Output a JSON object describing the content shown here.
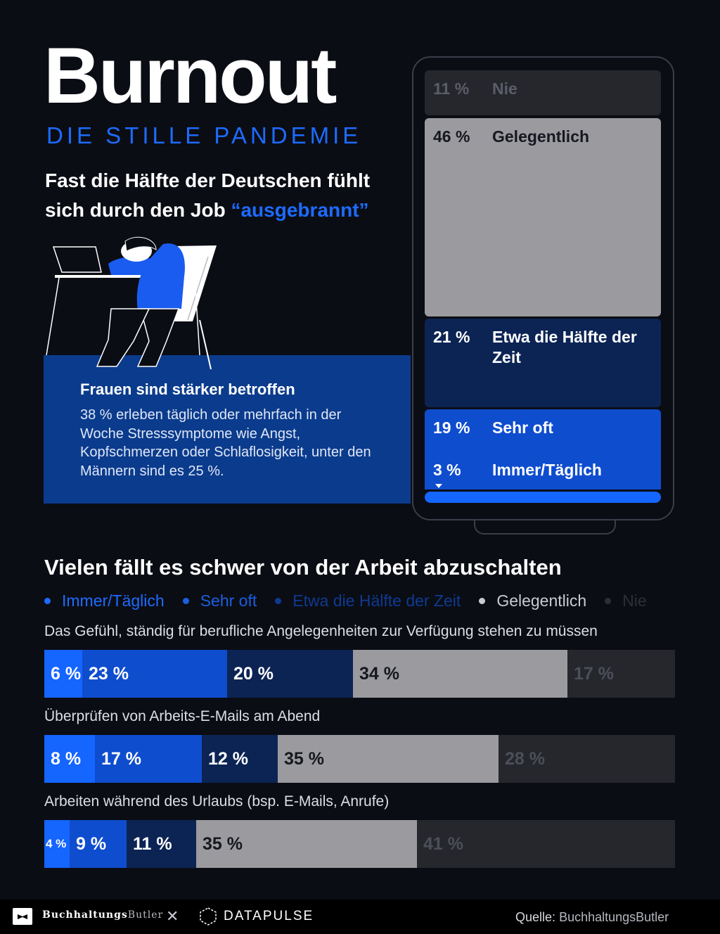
{
  "header": {
    "title": "Burnout",
    "subtitle": "DIE STILLE PANDEMIE",
    "headline_part1": "Fast die Hälfte der Deutschen fühlt sich durch den Job ",
    "headline_highlight": "“ausgebrannt”"
  },
  "info_box": {
    "title": "Frauen sind stärker betroffen",
    "text": "38 % erleben täglich oder mehrfach in der Woche Stresssymptome wie Angst, Kopfschmerzen oder Schlaflosigkeit, unter den Männern sind es 25 %."
  },
  "phone_chart": {
    "segments": [
      {
        "pct": "11 %",
        "label": "Nie"
      },
      {
        "pct": "46 %",
        "label": "Gelegentlich"
      },
      {
        "pct": "21 %",
        "label": "Etwa die Hälfte der Zeit"
      },
      {
        "pct": "19 %",
        "label": "Sehr oft"
      },
      {
        "pct": "3 %",
        "label": "Immer/Täglich"
      }
    ]
  },
  "section": {
    "title": "Vielen fällt es schwer von der Arbeit abzuschalten"
  },
  "colors": {
    "daily": "#1565ff",
    "very_often": "#0f4dcf",
    "half": "#0c2454",
    "occasionally": "#9a9a9f",
    "never": "#25272d",
    "accent": "#1d6bff"
  },
  "chart_data": [
    {
      "type": "bar",
      "orientation": "vertical-stacked",
      "categories": [
        "Nie",
        "Gelegentlich",
        "Etwa die Hälfte der Zeit",
        "Sehr oft",
        "Immer/Täglich"
      ],
      "values": [
        11,
        46,
        21,
        19,
        3
      ],
      "unit": "%"
    },
    {
      "type": "bar",
      "orientation": "horizontal-stacked",
      "legend": [
        "Immer/Täglich",
        "Sehr oft",
        "Etwa die Hälfte der Zeit",
        "Gelegentlich",
        "Nie"
      ],
      "legend_placement": "top",
      "categories": [
        "Das Gefühl, ständig für berufliche Angelegenheiten zur Verfügung stehen zu müssen",
        "Überprüfen von Arbeits-E-Mails am Abend",
        "Arbeiten während des Urlaubs (bsp. E-Mails, Anrufe)"
      ],
      "series": [
        {
          "name": "Immer/Täglich",
          "values": [
            6,
            8,
            4
          ]
        },
        {
          "name": "Sehr oft",
          "values": [
            23,
            17,
            9
          ]
        },
        {
          "name": "Etwa die Hälfte der Zeit",
          "values": [
            20,
            12,
            11
          ]
        },
        {
          "name": "Gelegentlich",
          "values": [
            34,
            35,
            35
          ]
        },
        {
          "name": "Nie",
          "values": [
            17,
            28,
            41
          ]
        }
      ],
      "unit": "%"
    }
  ],
  "footer": {
    "brand_bold": "Buchhaltungs",
    "brand_light": "Butler",
    "separator": "✕",
    "partner": "DATAPULSE",
    "source_label": "Quelle:",
    "source_value": "BuchhaltungsButler"
  }
}
